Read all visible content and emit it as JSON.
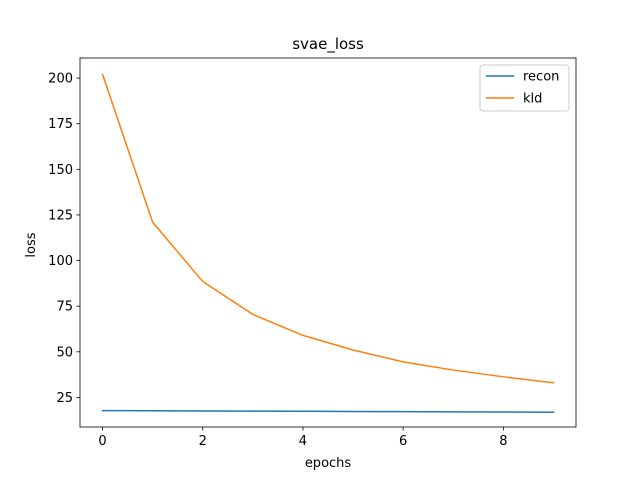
{
  "chart_data": {
    "type": "line",
    "title": "svae_loss",
    "xlabel": "epochs",
    "ylabel": "loss",
    "x": [
      0,
      1,
      2,
      3,
      4,
      5,
      6,
      7,
      8,
      9
    ],
    "xlim": [
      -0.45,
      9.45
    ],
    "ylim": [
      8.8,
      211.0
    ],
    "x_ticks": [
      0,
      2,
      4,
      6,
      8
    ],
    "y_ticks": [
      25,
      50,
      75,
      100,
      125,
      150,
      175,
      200
    ],
    "grid": false,
    "legend_position": "top-right",
    "series": [
      {
        "name": "recon",
        "color": "#1f77b4",
        "values": [
          17.8,
          17.7,
          17.6,
          17.5,
          17.4,
          17.3,
          17.2,
          17.1,
          17.0,
          16.9
        ]
      },
      {
        "name": "kld",
        "color": "#ff7f0e",
        "values": [
          202.0,
          121.0,
          88.5,
          70.5,
          59.0,
          51.0,
          44.5,
          40.0,
          36.3,
          33.0
        ]
      }
    ]
  }
}
